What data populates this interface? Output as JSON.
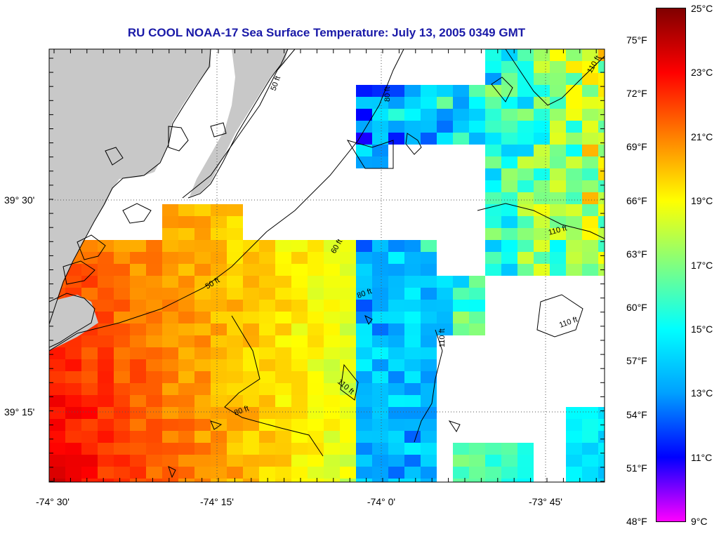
{
  "title": "RU COOL  NOAA-17  Sea Surface Temperature:  July 13, 2005 0349 GMT",
  "longitude_ticks": [
    "-74° 30'",
    "-74° 15'",
    "-74° 0'",
    "-73° 45'"
  ],
  "latitude_ticks": [
    "39° 30'",
    "39° 15'"
  ],
  "colorbar": {
    "celsius": [
      "25°C",
      "23°C",
      "21°C",
      "19°C",
      "17°C",
      "15°C",
      "13°C",
      "11°C",
      "9°C"
    ],
    "fahrenheit": [
      "75°F",
      "72°F",
      "69°F",
      "66°F",
      "63°F",
      "60°F",
      "57°F",
      "54°F",
      "51°F",
      "48°F"
    ]
  },
  "depth_contours": [
    "50 ft",
    "60 ft",
    "80 ft",
    "110 ft"
  ],
  "colors": {
    "land": "#c8c8c8",
    "cloud_no_data": "#ffffff",
    "title": "#1a1aa8",
    "colormap": [
      "#ff00ff",
      "#0000ff",
      "#00a0ff",
      "#00ffff",
      "#80ff80",
      "#ffff00",
      "#ff8000",
      "#ff0000",
      "#800000"
    ]
  }
}
